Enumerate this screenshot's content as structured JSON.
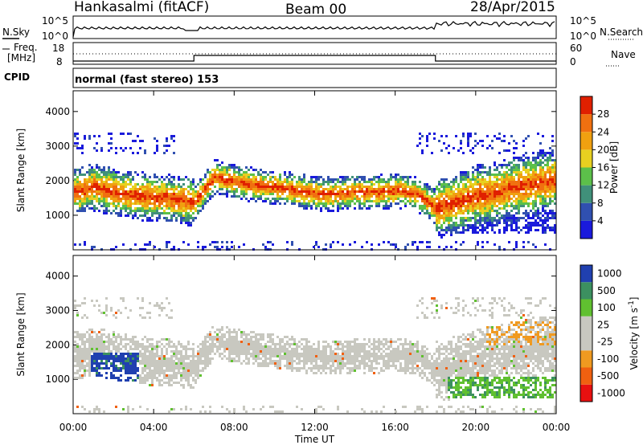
{
  "header": {
    "station": "Hankasalmi (fitACF)",
    "beam": "Beam 00",
    "date": "28/Apr/2015"
  },
  "sky_panel": {
    "left_label": "N.Sky",
    "right_label": "N.Search",
    "y_ticks_left": [
      "10^5",
      "10^0"
    ],
    "y_ticks_right": [
      "10^5",
      "10^0"
    ]
  },
  "freq_panel": {
    "left_label_line1": "Freq.",
    "left_label_line2": "[MHz]",
    "right_label": "Nave",
    "y_ticks_left": [
      "18",
      "8"
    ],
    "y_ticks_right": [
      "60",
      "0"
    ]
  },
  "cpid_panel": {
    "label": "CPID",
    "text": "normal (fast stereo) 153"
  },
  "colors": {
    "power": [
      "#1a1adc",
      "#3050b0",
      "#40907a",
      "#5cc04a",
      "#e8d020",
      "#f0a010",
      "#f07010",
      "#e02000"
    ],
    "velocity": [
      "#e81010",
      "#f06010",
      "#f09a20",
      "#c8c8c0",
      "#c8c8c0",
      "#60c030",
      "#3c9060",
      "#2040b0"
    ]
  },
  "chart_data": [
    {
      "type": "heatmap",
      "quantity": "power",
      "ylabel": "Slant Range [km]",
      "yticks": [
        1000,
        2000,
        3000,
        4000
      ],
      "ylim": [
        0,
        4600
      ],
      "xticks": [
        "00:00",
        "04:00",
        "08:00",
        "12:00",
        "16:00",
        "20:00",
        "00:00"
      ],
      "xlim_hours": [
        0,
        24
      ],
      "colorbar_label": "Power [dB]",
      "colorbar_ticks": [
        4,
        8,
        12,
        16,
        20,
        24,
        28
      ],
      "colorbar_range": [
        0,
        32
      ],
      "band_profile": {
        "hours": [
          0,
          1,
          2,
          3,
          4,
          5,
          6,
          7,
          8,
          9,
          10,
          11,
          12,
          13,
          14,
          15,
          16,
          17,
          18,
          19,
          20,
          21,
          22,
          23,
          24
        ],
        "center_km": [
          1700,
          1850,
          1700,
          1600,
          1550,
          1500,
          1400,
          2150,
          2000,
          1900,
          1850,
          1750,
          1650,
          1650,
          1700,
          1700,
          1750,
          1650,
          1250,
          1400,
          1600,
          1700,
          1850,
          1950,
          2050
        ]
      }
    },
    {
      "type": "heatmap",
      "quantity": "velocity",
      "ylabel": "Slant Range [km]",
      "yticks": [
        1000,
        2000,
        3000,
        4000
      ],
      "ylim": [
        0,
        4600
      ],
      "xticks": [
        "00:00",
        "04:00",
        "08:00",
        "12:00",
        "16:00",
        "20:00",
        "00:00"
      ],
      "xlim_hours": [
        0,
        24
      ],
      "xlabel": "Time UT",
      "colorbar_label": "Velocity [m s",
      "colorbar_label_sup": "-1",
      "colorbar_label_end": "]",
      "colorbar_ticks": [
        1000,
        500,
        100,
        25,
        -25,
        -100,
        -500,
        -1000
      ]
    }
  ]
}
